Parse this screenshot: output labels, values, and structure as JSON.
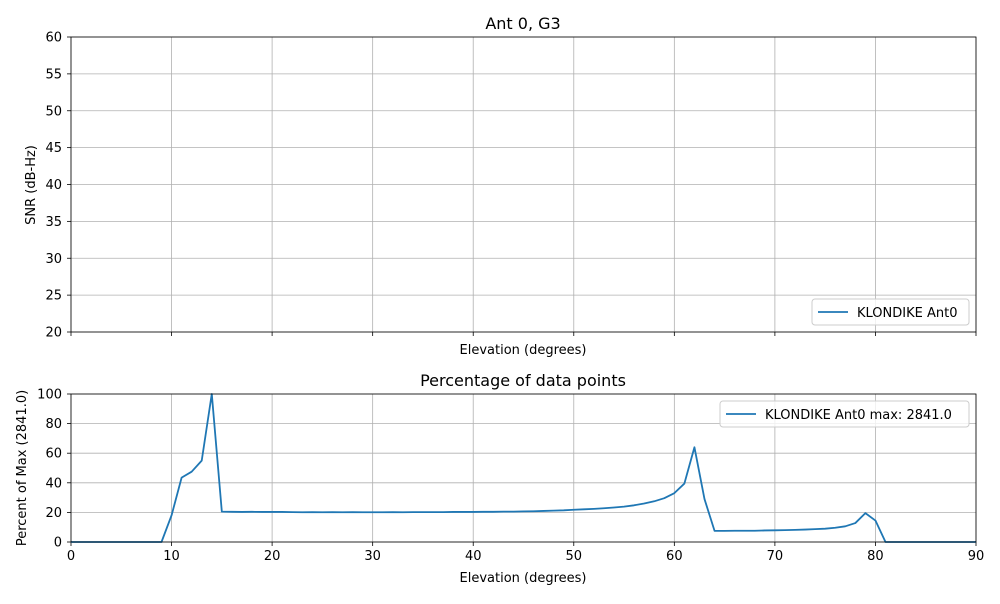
{
  "colors": {
    "series": "#1f77b4",
    "grid": "#b0b0b0"
  },
  "chart_data": [
    {
      "type": "line",
      "title": "Ant 0, G3",
      "xlabel": "Elevation (degrees)",
      "ylabel": "SNR (dB-Hz)",
      "xlim": [
        0,
        90
      ],
      "ylim": [
        20,
        60
      ],
      "yticks": [
        "20",
        "25",
        "30",
        "35",
        "40",
        "45",
        "50",
        "55",
        "60"
      ],
      "show_xtick_labels": false,
      "grid": true,
      "legend_position": "lower-right",
      "series": [
        {
          "name": "KLONDIKE Ant0",
          "x": [],
          "y": []
        }
      ]
    },
    {
      "type": "line",
      "title": "Percentage of data points",
      "xlabel": "Elevation (degrees)",
      "ylabel": "Percent of Max (2841.0)",
      "xlim": [
        0,
        90
      ],
      "ylim": [
        0,
        100
      ],
      "xticks": [
        "0",
        "10",
        "20",
        "30",
        "40",
        "50",
        "60",
        "70",
        "80",
        "90"
      ],
      "yticks": [
        "0",
        "20",
        "40",
        "60",
        "80",
        "100"
      ],
      "grid": true,
      "legend_position": "upper-right",
      "series": [
        {
          "name": "KLONDIKE Ant0 max: 2841.0",
          "x": [
            0,
            1,
            2,
            3,
            4,
            5,
            6,
            7,
            8,
            9,
            10,
            11,
            12,
            13,
            14,
            15,
            16,
            17,
            18,
            19,
            20,
            21,
            22,
            23,
            24,
            25,
            26,
            27,
            28,
            29,
            30,
            31,
            32,
            33,
            34,
            35,
            36,
            37,
            38,
            39,
            40,
            41,
            42,
            43,
            44,
            45,
            46,
            47,
            48,
            49,
            50,
            51,
            52,
            53,
            54,
            55,
            56,
            57,
            58,
            59,
            60,
            61,
            62,
            63,
            64,
            65,
            66,
            67,
            68,
            69,
            70,
            71,
            72,
            73,
            74,
            75,
            76,
            77,
            78,
            79,
            80,
            81,
            82,
            83,
            84,
            85,
            86,
            87,
            88,
            89,
            90
          ],
          "y": [
            0,
            0,
            0,
            0,
            0,
            0,
            0,
            0,
            0,
            0,
            18,
            43.5,
            47.5,
            55,
            100,
            20.5,
            20.4,
            20.3,
            20.4,
            20.3,
            20.3,
            20.3,
            20.2,
            20.1,
            20.2,
            20.1,
            20.2,
            20.1,
            20.2,
            20.1,
            20.1,
            20.1,
            20.2,
            20.1,
            20.2,
            20.2,
            20.2,
            20.2,
            20.3,
            20.3,
            20.3,
            20.4,
            20.4,
            20.5,
            20.5,
            20.7,
            20.8,
            21,
            21.2,
            21.4,
            21.8,
            22.1,
            22.4,
            22.8,
            23.3,
            23.9,
            24.8,
            26,
            27.5,
            29.6,
            33,
            39.5,
            64,
            29,
            7.5,
            7.5,
            7.6,
            7.6,
            7.6,
            7.8,
            7.9,
            8,
            8.2,
            8.4,
            8.7,
            9,
            9.6,
            10.6,
            12.8,
            19.5,
            14.5,
            0,
            0,
            0,
            0,
            0,
            0,
            0,
            0,
            0,
            0
          ]
        }
      ]
    }
  ]
}
